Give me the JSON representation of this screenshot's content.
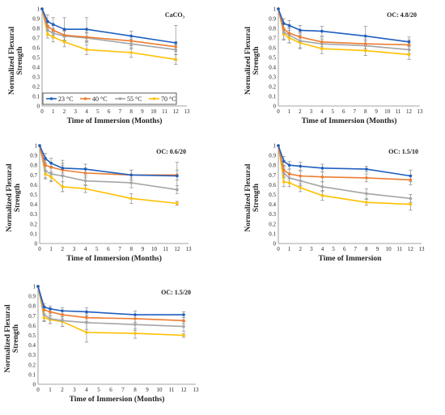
{
  "legend": {
    "series_names": [
      "23 °C",
      "40 °C",
      "55 °C",
      "70 °C"
    ],
    "colors": [
      "#1F5FBF",
      "#ED7D31",
      "#A5A5A5",
      "#FFC000"
    ]
  },
  "chart_data": [
    {
      "type": "line",
      "title": "CaCO₃",
      "xlabel": "Time of Immersion (Months)",
      "ylabel": "Normalized Flexural Strength",
      "xlim": [
        0,
        13
      ],
      "ylim": [
        0,
        1
      ],
      "xticks": [
        "0",
        "1",
        "2",
        "3",
        "4",
        "5",
        "6",
        "7",
        "8",
        "9",
        "10",
        "11",
        "12",
        "13"
      ],
      "yticks": [
        "0",
        "0.1",
        "0.2",
        "0.3",
        "0.4",
        "0.5",
        "0.6",
        "0.7",
        "0.8",
        "0.9",
        "1"
      ],
      "grid": false,
      "legend_position": "bottom-left",
      "x": [
        0,
        0.5,
        1,
        2,
        4,
        8,
        12
      ],
      "series": [
        {
          "name": "23 °C",
          "color": "#1F5FBF",
          "values": [
            1,
            0.87,
            0.84,
            0.79,
            0.79,
            0.72,
            0.65
          ],
          "errors": [
            0,
            0.07,
            0.07,
            0.12,
            0.12,
            0.05,
            0.18
          ]
        },
        {
          "name": "40 °C",
          "color": "#ED7D31",
          "values": [
            1,
            0.82,
            0.78,
            0.73,
            0.71,
            0.67,
            0.61
          ],
          "errors": [
            0,
            0.05,
            0.05,
            0.05,
            0.05,
            0.05,
            0.05
          ]
        },
        {
          "name": "55 °C",
          "color": "#A5A5A5",
          "values": [
            1,
            0.78,
            0.75,
            0.72,
            0.7,
            0.64,
            0.58
          ],
          "errors": [
            0,
            0.05,
            0.05,
            0.05,
            0.05,
            0.05,
            0.05
          ]
        },
        {
          "name": "70 °C",
          "color": "#FFC000",
          "values": [
            1,
            0.74,
            0.71,
            0.66,
            0.58,
            0.55,
            0.48
          ],
          "errors": [
            0,
            0.04,
            0.05,
            0.05,
            0.05,
            0.05,
            0.05
          ]
        }
      ]
    },
    {
      "type": "line",
      "title": "OC: 4.8/20",
      "xlabel": "Time of Immersion (Months)",
      "ylabel": "Normalized Flexural Strength",
      "xlim": [
        0,
        13
      ],
      "ylim": [
        0,
        1
      ],
      "xticks": [
        "0",
        "1",
        "2",
        "3",
        "4",
        "5",
        "6",
        "7",
        "8",
        "9",
        "10",
        "11",
        "12",
        "13"
      ],
      "yticks": [
        "0",
        "0.1",
        "0.2",
        "0.3",
        "0.4",
        "0.5",
        "0.6",
        "0.7",
        "0.8",
        "0.9",
        "1"
      ],
      "grid": false,
      "x": [
        0,
        0.5,
        1,
        2,
        4,
        8,
        12
      ],
      "series": [
        {
          "name": "23 °C",
          "color": "#1F5FBF",
          "values": [
            1,
            0.85,
            0.83,
            0.78,
            0.77,
            0.72,
            0.66
          ],
          "errors": [
            0,
            0.05,
            0.05,
            0.05,
            0.05,
            0.1,
            0.05
          ]
        },
        {
          "name": "40 °C",
          "color": "#ED7D31",
          "values": [
            1,
            0.79,
            0.75,
            0.71,
            0.66,
            0.64,
            0.63
          ],
          "errors": [
            0,
            0.05,
            0.05,
            0.05,
            0.05,
            0.05,
            0.05
          ]
        },
        {
          "name": "55 °C",
          "color": "#A5A5A5",
          "values": [
            1,
            0.76,
            0.73,
            0.67,
            0.64,
            0.62,
            0.58
          ],
          "errors": [
            0,
            0.08,
            0.08,
            0.08,
            0.05,
            0.05,
            0.04
          ]
        },
        {
          "name": "70 °C",
          "color": "#FFC000",
          "values": [
            1,
            0.74,
            0.7,
            0.65,
            0.59,
            0.57,
            0.53
          ],
          "errors": [
            0,
            0.05,
            0.05,
            0.05,
            0.05,
            0.05,
            0.05
          ]
        }
      ]
    },
    {
      "type": "line",
      "title": "OC: 0.6/20",
      "xlabel": "Time of Immersion (Months)",
      "ylabel": "Normalized Flexural Strength",
      "xlim": [
        0,
        13
      ],
      "ylim": [
        0,
        1
      ],
      "xticks": [
        "0",
        "1",
        "2",
        "3",
        "4",
        "5",
        "6",
        "7",
        "8",
        "9",
        "10",
        "11",
        "12",
        "13"
      ],
      "yticks": [
        "0",
        "0.1",
        "0.2",
        "0.3",
        "0.4",
        "0.5",
        "0.6",
        "0.7",
        "0.8",
        "0.9",
        "1"
      ],
      "grid": false,
      "x": [
        0,
        0.5,
        1,
        2,
        4,
        8,
        12
      ],
      "series": [
        {
          "name": "23 °C",
          "color": "#1F5FBF",
          "values": [
            1,
            0.87,
            0.82,
            0.77,
            0.76,
            0.7,
            0.69
          ],
          "errors": [
            0,
            0.05,
            0.05,
            0.05,
            0.05,
            0.05,
            0.14
          ]
        },
        {
          "name": "40 °C",
          "color": "#ED7D31",
          "values": [
            1,
            0.8,
            0.78,
            0.75,
            0.72,
            0.7,
            0.7
          ],
          "errors": [
            0,
            0.05,
            0.05,
            0.05,
            0.05,
            0.05,
            0.05
          ]
        },
        {
          "name": "55 °C",
          "color": "#A5A5A5",
          "values": [
            1,
            0.74,
            0.71,
            0.69,
            0.64,
            0.62,
            0.55
          ],
          "errors": [
            0,
            0.08,
            0.08,
            0.16,
            0.05,
            0.05,
            0.04
          ]
        },
        {
          "name": "70 °C",
          "color": "#FFC000",
          "values": [
            1,
            0.71,
            0.68,
            0.58,
            0.56,
            0.46,
            0.41
          ],
          "errors": [
            0,
            0.04,
            0.04,
            0.05,
            0.04,
            0.05,
            0.02
          ]
        }
      ]
    },
    {
      "type": "line",
      "title": "OC: 1.5/10",
      "xlabel": "Time of Immersion",
      "ylabel": "Normalized Flexural Strength",
      "xlim": [
        0,
        13
      ],
      "ylim": [
        0,
        1
      ],
      "xticks": [
        "0",
        "1",
        "2",
        "3",
        "4",
        "5",
        "6",
        "7",
        "8",
        "9",
        "10",
        "11",
        "12",
        "13"
      ],
      "yticks": [
        "0",
        "0.1",
        "0.2",
        "0.3",
        "0.4",
        "0.5",
        "0.6",
        "0.7",
        "0.8",
        "0.9",
        "1"
      ],
      "grid": false,
      "x": [
        0,
        0.5,
        1,
        2,
        4,
        8,
        12
      ],
      "series": [
        {
          "name": "23 °C",
          "color": "#1F5FBF",
          "values": [
            1,
            0.84,
            0.8,
            0.79,
            0.77,
            0.76,
            0.69
          ],
          "errors": [
            0,
            0.05,
            0.04,
            0.04,
            0.04,
            0.03,
            0.06
          ]
        },
        {
          "name": "40 °C",
          "color": "#ED7D31",
          "values": [
            1,
            0.75,
            0.71,
            0.69,
            0.68,
            0.67,
            0.65
          ],
          "errors": [
            0,
            0.05,
            0.05,
            0.05,
            0.05,
            0.04,
            0.05
          ]
        },
        {
          "name": "55 °C",
          "color": "#A5A5A5",
          "values": [
            1,
            0.72,
            0.67,
            0.64,
            0.58,
            0.51,
            0.46
          ],
          "errors": [
            0,
            0.05,
            0.05,
            0.05,
            0.05,
            0.05,
            0.04
          ]
        },
        {
          "name": "70 °C",
          "color": "#FFC000",
          "values": [
            1,
            0.63,
            0.62,
            0.57,
            0.49,
            0.42,
            0.4
          ],
          "errors": [
            0,
            0.05,
            0.04,
            0.04,
            0.05,
            0.03,
            0.06
          ]
        }
      ]
    },
    {
      "type": "line",
      "title": "OC: 1.5/20",
      "xlabel": "Time of Immersion (Months)",
      "ylabel": "Normalized Flexural Strength",
      "xlim": [
        0,
        13
      ],
      "ylim": [
        0,
        1
      ],
      "xticks": [
        "0",
        "1",
        "2",
        "3",
        "4",
        "5",
        "6",
        "7",
        "8",
        "9",
        "10",
        "11",
        "12",
        "13"
      ],
      "yticks": [
        "0",
        "0.1",
        "0.2",
        "0.3",
        "0.4",
        "0.5",
        "0.6",
        "0.7",
        "0.8",
        "0.9",
        "1"
      ],
      "grid": false,
      "x": [
        0,
        0.5,
        1,
        2,
        4,
        8,
        12
      ],
      "series": [
        {
          "name": "23 °C",
          "color": "#1F5FBF",
          "values": [
            1,
            0.79,
            0.77,
            0.75,
            0.74,
            0.71,
            0.71
          ],
          "errors": [
            0,
            0.03,
            0.03,
            0.03,
            0.04,
            0.04,
            0.03
          ]
        },
        {
          "name": "40 °C",
          "color": "#ED7D31",
          "values": [
            1,
            0.76,
            0.74,
            0.71,
            0.68,
            0.67,
            0.65
          ],
          "errors": [
            0,
            0.04,
            0.04,
            0.04,
            0.04,
            0.04,
            0.03
          ]
        },
        {
          "name": "55 °C",
          "color": "#A5A5A5",
          "values": [
            1,
            0.71,
            0.67,
            0.65,
            0.63,
            0.61,
            0.59
          ],
          "errors": [
            0,
            0.06,
            0.05,
            0.06,
            0.07,
            0.06,
            0.05
          ]
        },
        {
          "name": "70 °C",
          "color": "#FFC000",
          "values": [
            1,
            0.68,
            0.66,
            0.64,
            0.53,
            0.52,
            0.5
          ],
          "errors": [
            0,
            0.04,
            0.04,
            0.05,
            0.1,
            0.05,
            0.02
          ]
        }
      ]
    }
  ]
}
